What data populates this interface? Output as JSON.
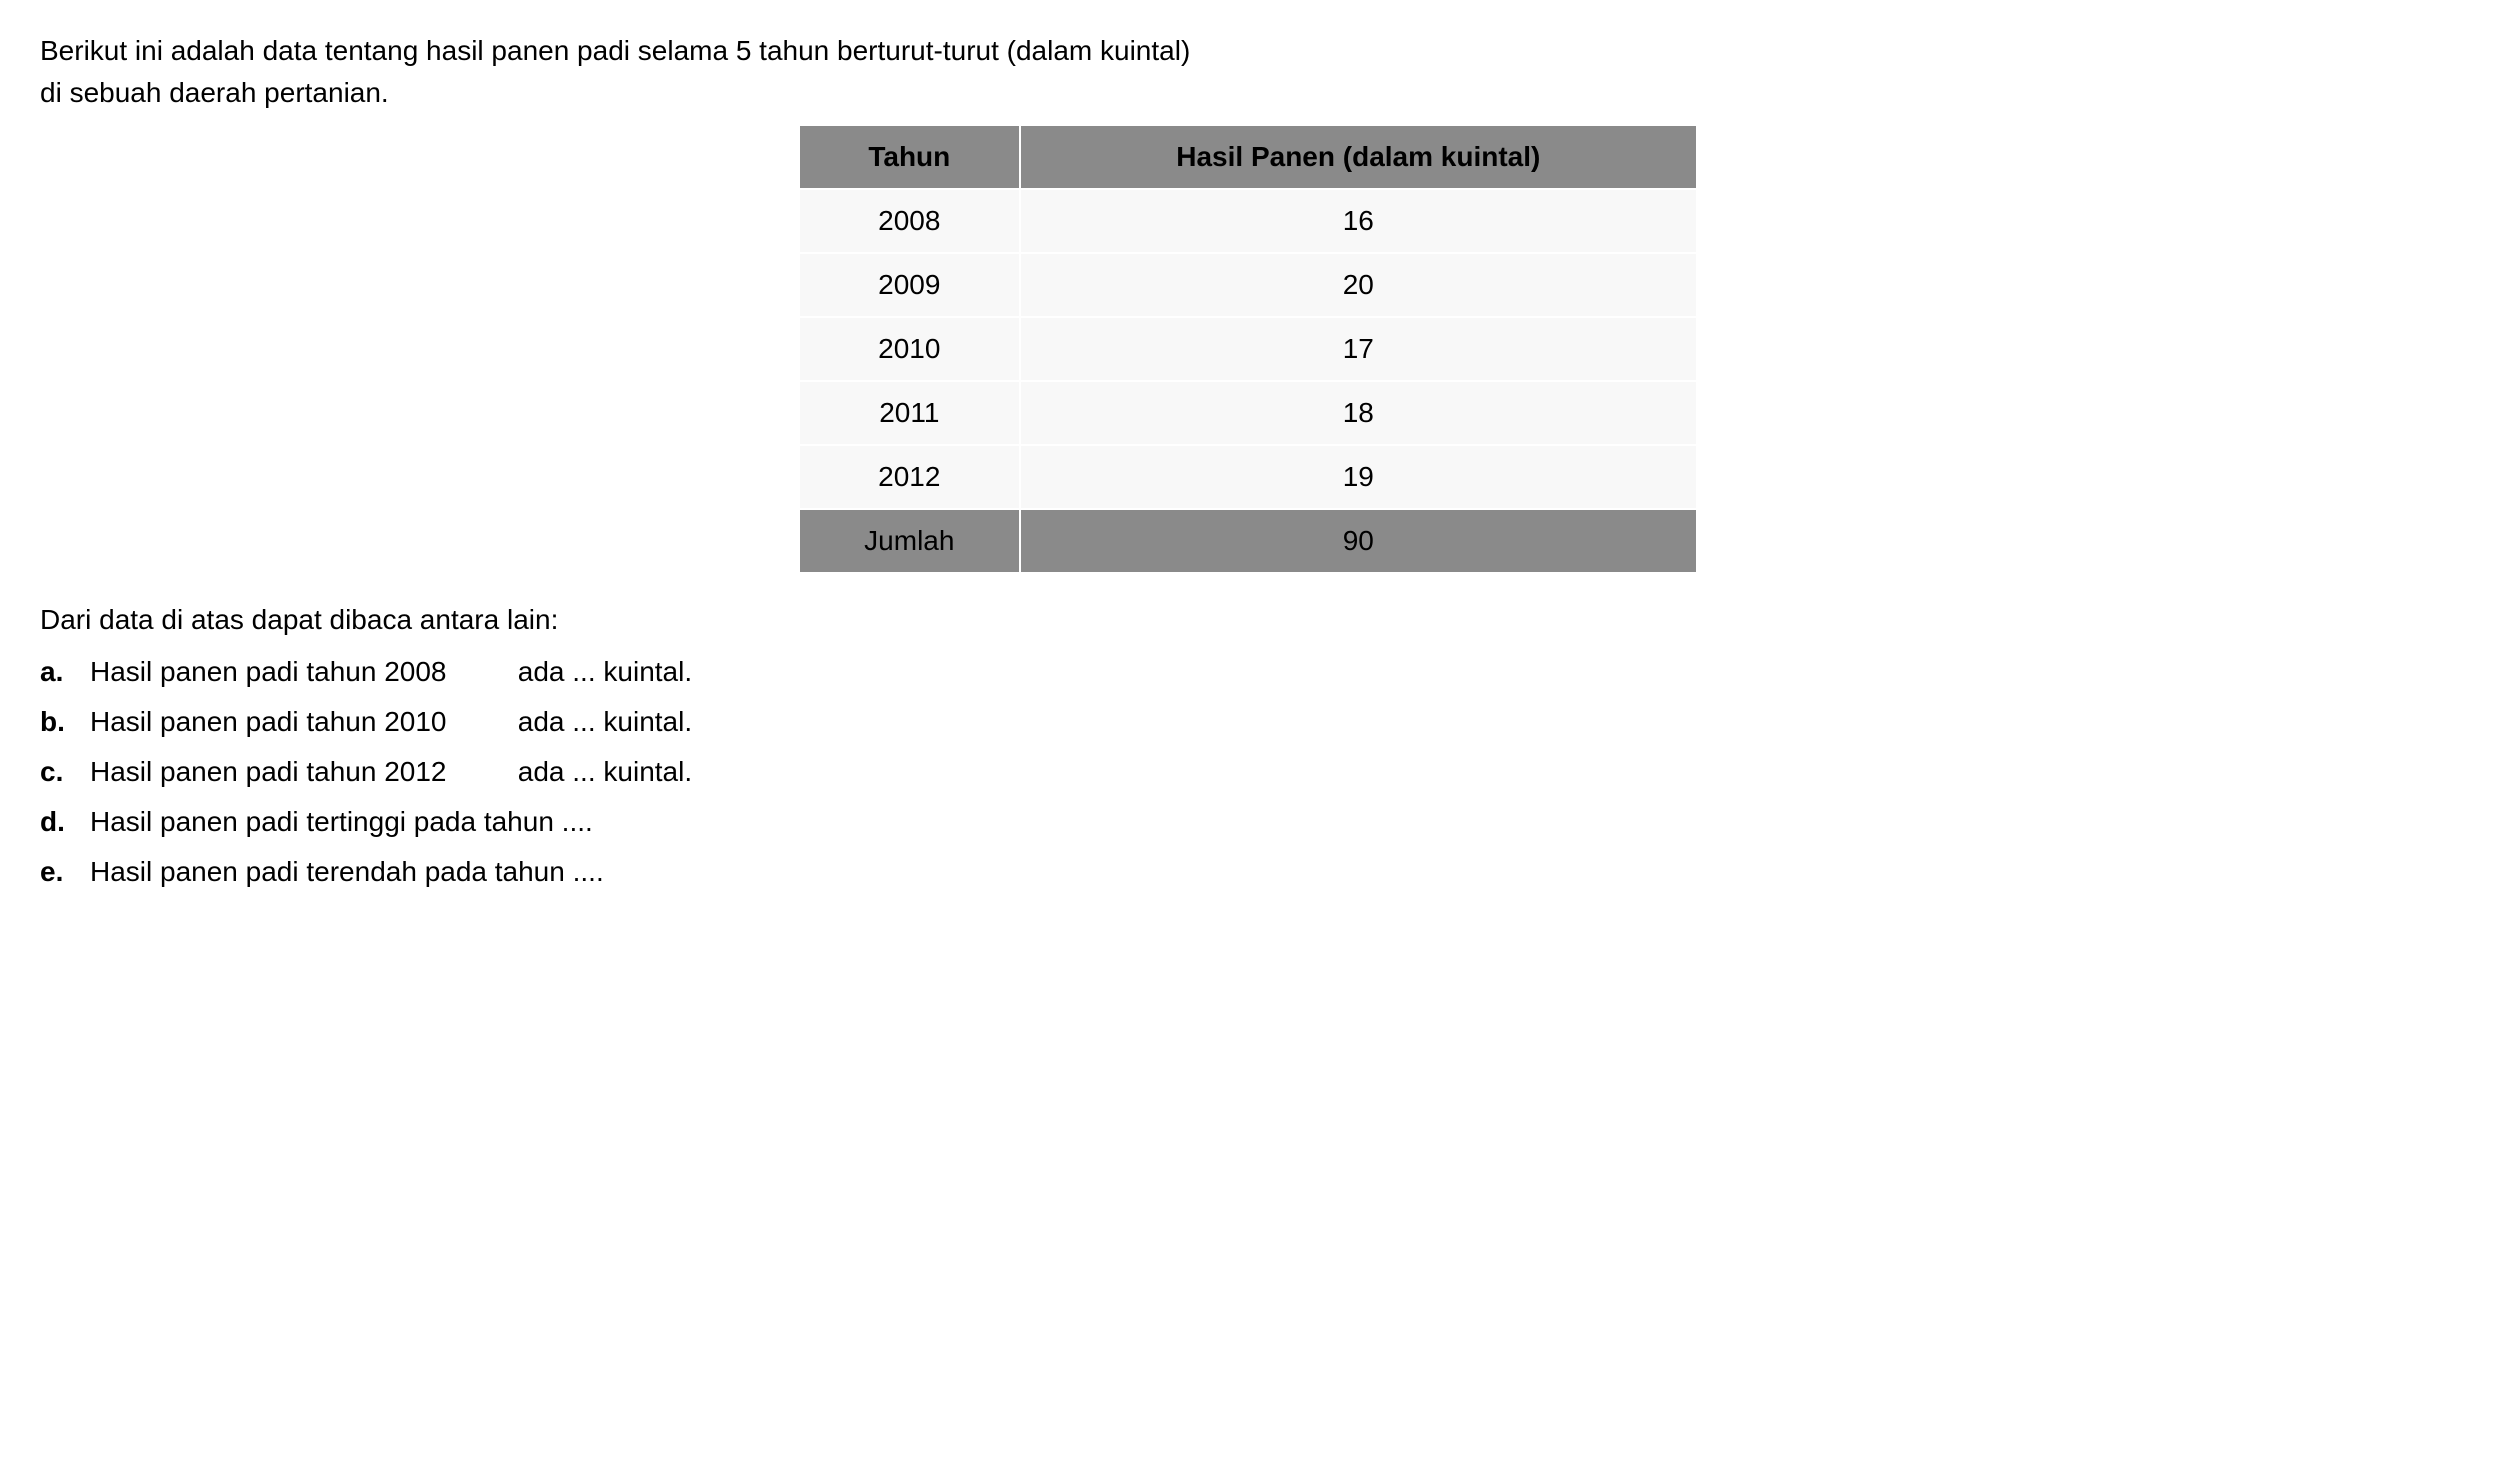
{
  "intro": {
    "line1": "Berikut ini adalah data tentang hasil panen padi selama 5 tahun berturut-turut (dalam kuintal)",
    "line2": "di sebuah daerah pertanian."
  },
  "table": {
    "headers": {
      "col1": "Tahun",
      "col2": "Hasil Panen (dalam kuintal)"
    },
    "rows": [
      {
        "year": "2008",
        "value": "16"
      },
      {
        "year": "2009",
        "value": "20"
      },
      {
        "year": "2010",
        "value": "17"
      },
      {
        "year": "2011",
        "value": "18"
      },
      {
        "year": "2012",
        "value": "19"
      }
    ],
    "total": {
      "label": "Jumlah",
      "value": "90"
    },
    "header_bg": "#8a8a8a",
    "row_bg": "#f8f8f8",
    "total_bg": "#8a8a8a"
  },
  "reading_intro": "Dari data di atas dapat dibaca antara lain:",
  "questions": [
    {
      "letter": "a.",
      "text_part1": "Hasil panen padi tahun 2008",
      "text_part2": "ada  ...  kuintal."
    },
    {
      "letter": "b.",
      "text_part1": "Hasil panen padi tahun 2010",
      "text_part2": "ada  ...  kuintal."
    },
    {
      "letter": "c.",
      "text_part1": "Hasil panen padi tahun 2012",
      "text_part2": "ada  ...  kuintal."
    },
    {
      "letter": "d.",
      "text_part1": "Hasil panen padi tertinggi pada tahun  ....",
      "text_part2": ""
    },
    {
      "letter": "e.",
      "text_part1": "Hasil panen padi terendah pada tahun  ....",
      "text_part2": ""
    }
  ]
}
